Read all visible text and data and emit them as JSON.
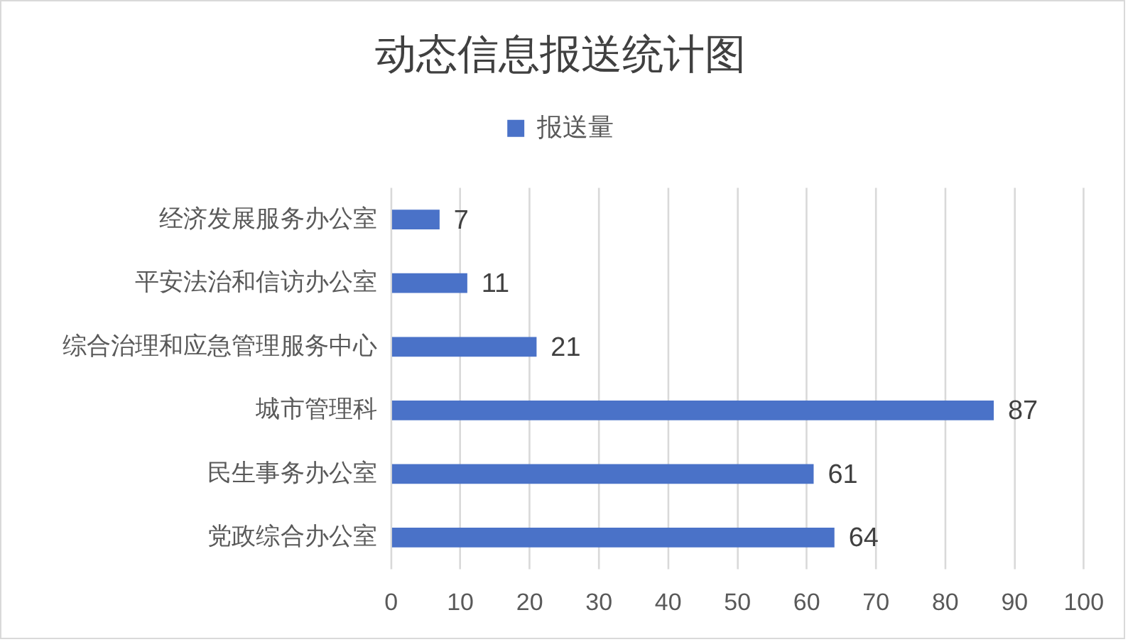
{
  "chart_data": {
    "type": "bar",
    "orientation": "horizontal",
    "title": "动态信息报送统计图",
    "categories": [
      "经济发展服务办公室",
      "平安法治和信访办公室",
      "综合治理和应急管理服务中心",
      "城市管理科",
      "民生事务办公室",
      "党政综合办公室"
    ],
    "series": [
      {
        "name": "报送量",
        "color": "#4a72c8",
        "values": [
          7,
          11,
          21,
          87,
          61,
          64
        ]
      }
    ],
    "xlim": [
      0,
      100
    ],
    "xticks": [
      0,
      10,
      20,
      30,
      40,
      50,
      60,
      70,
      80,
      90,
      100
    ],
    "grid": "x",
    "legend": "top",
    "data_labels": true
  }
}
